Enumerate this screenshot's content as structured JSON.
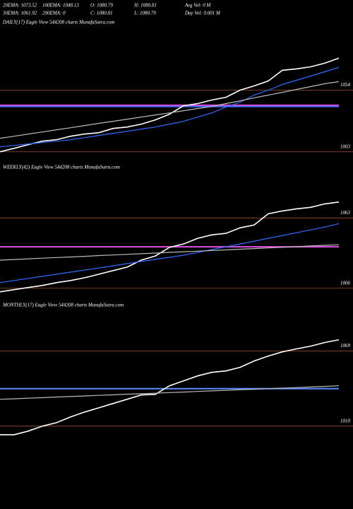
{
  "header": {
    "row1": [
      "20EMA: 1073.52",
      "100EMA: 1048.13",
      "O: 1080.79",
      "H: 1080.81",
      "Avg Vol: 0  M"
    ],
    "row2": [
      "30EMA: 1061.92",
      "200EMA: 0",
      "C: 1080.81",
      "L: 1080.79",
      "Day Vol: 0.001 M"
    ]
  },
  "chart_data": [
    {
      "type": "line",
      "title": "DAILY(17) Eagle  View  544208  charts MunafaSutra.com",
      "ylim": [
        997,
        1111
      ],
      "yticks": [
        1003,
        1054
      ],
      "grid": true,
      "grid_color": "#a0522d",
      "levels": [
        {
          "value": 1041.5,
          "color": "#e050e0"
        },
        {
          "value": 1040.5,
          "color": "#4a6cff"
        }
      ],
      "series": [
        {
          "color": "#ffffff",
          "values": [
            1003,
            1005.9,
            1008.9,
            1011.8,
            1013,
            1015.9,
            1017.7,
            1018.8,
            1022.3,
            1023.5,
            1025.9,
            1029.4,
            1034.1,
            1041.1,
            1042.9,
            1045.8,
            1048.1,
            1054,
            1057.5,
            1061.6,
            1070.4,
            1071.6,
            1073.3,
            1076.3,
            1080.4
          ]
        },
        {
          "color": "#2f6bff",
          "values": [
            1007.1,
            1008.3,
            1009.5,
            1010.6,
            1011.8,
            1013.0,
            1014.7,
            1016.5,
            1018.3,
            1020.0,
            1021.8,
            1023.5,
            1025.9,
            1028.2,
            1031.7,
            1035.2,
            1039.9,
            1044.0,
            1049.9,
            1054,
            1058.7,
            1062.2,
            1065.7,
            1069.2,
            1072.8
          ]
        },
        {
          "color": "#bbbbbb",
          "values": [
            1014.2,
            1015.9,
            1017.7,
            1019.4,
            1021.2,
            1022.9,
            1024.7,
            1026.5,
            1028.2,
            1030.0,
            1031.7,
            1033.5,
            1035.2,
            1037.0,
            1038.8,
            1040.5,
            1042.9,
            1045.2,
            1047.6,
            1049.9,
            1052.2,
            1054.6,
            1056.9,
            1059.3,
            1061.0
          ]
        }
      ]
    },
    {
      "type": "line",
      "title": "WEEKLY(42) Eagle  View  544208  charts MunafaSutra.com",
      "ylim": [
        999,
        1105
      ],
      "yticks": [
        1006,
        1063
      ],
      "grid": true,
      "grid_color": "#a0522d",
      "levels": [
        {
          "value": 1039.6,
          "color": "#e050e0"
        }
      ],
      "series": [
        {
          "color": "#ffffff",
          "values": [
            1003.1,
            1004.9,
            1006.6,
            1008.3,
            1010.6,
            1012.3,
            1014.5,
            1017.4,
            1020.3,
            1023.1,
            1028.8,
            1032.2,
            1039.1,
            1041.9,
            1046.5,
            1049.3,
            1050.5,
            1055.0,
            1057.3,
            1066.4,
            1068.7,
            1070.4,
            1071.6,
            1074.4,
            1075.9
          ]
        },
        {
          "color": "#2f6bff",
          "values": [
            1010.6,
            1012.3,
            1014.0,
            1015.7,
            1017.4,
            1019.1,
            1020.8,
            1022.5,
            1024.2,
            1026.0,
            1027.7,
            1029.4,
            1031.1,
            1032.8,
            1035.1,
            1037.4,
            1039.6,
            1041.9,
            1044.2,
            1046.5,
            1048.8,
            1051.0,
            1053.3,
            1055.6,
            1058.4
          ]
        },
        {
          "color": "#bbbbbb",
          "values": [
            1028.8,
            1029.3,
            1029.9,
            1030.4,
            1030.9,
            1031.4,
            1031.9,
            1032.5,
            1033.0,
            1033.5,
            1034.0,
            1034.5,
            1035.1,
            1035.6,
            1036.1,
            1036.6,
            1037.1,
            1037.7,
            1038.2,
            1038.7,
            1039.2,
            1039.7,
            1040.3,
            1040.8,
            1041.3
          ]
        }
      ]
    },
    {
      "type": "line",
      "title": "MONTHLY(17) Eagle  View  544208  charts MunafaSutra.com",
      "ylim": [
        956,
        1106
      ],
      "yticks": [
        1010,
        1069
      ],
      "grid": true,
      "grid_color": "#a0522d",
      "levels": [
        {
          "value": 1039.5,
          "color": "#5a8cff"
        }
      ],
      "series": [
        {
          "color": "#ffffff",
          "values": [
            1003.3,
            1003.3,
            1006.1,
            1010.0,
            1012.7,
            1017.2,
            1021.1,
            1024.4,
            1027.8,
            1031.1,
            1034.5,
            1035.0,
            1041.7,
            1045.6,
            1049.5,
            1052.3,
            1053.4,
            1056.2,
            1061.2,
            1065.1,
            1068.4,
            1070.7,
            1072.9,
            1075.7,
            1077.9
          ]
        },
        {
          "color": "#bbbbbb",
          "values": [
            1031.1,
            1031.5,
            1032.0,
            1032.4,
            1032.9,
            1033.3,
            1033.7,
            1034.2,
            1034.6,
            1035.1,
            1035.5,
            1035.9,
            1036.4,
            1036.8,
            1037.3,
            1037.7,
            1038.1,
            1038.6,
            1039.0,
            1039.5,
            1039.9,
            1040.3,
            1040.8,
            1041.2,
            1041.7
          ]
        }
      ]
    }
  ]
}
